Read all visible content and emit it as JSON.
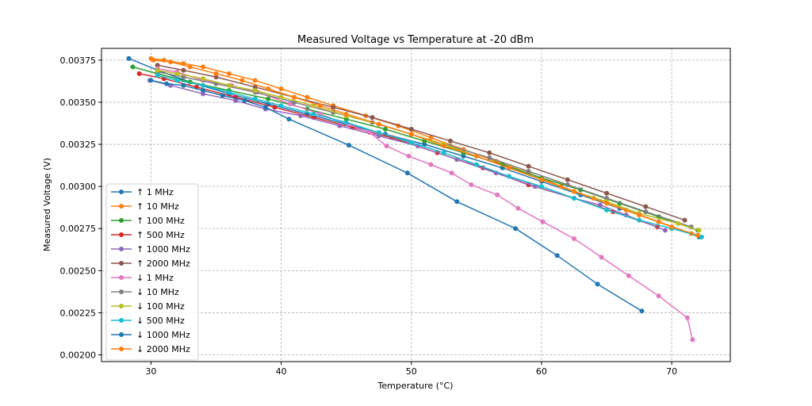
{
  "chart_data": {
    "type": "line",
    "title": "Measured Voltage vs Temperature at -20 dBm",
    "xlabel": "Temperature (°C)",
    "ylabel": "Measured Voltage (V)",
    "xlim": [
      26.2,
      74.5
    ],
    "ylim": [
      0.00196,
      0.00382
    ],
    "xticks": [
      30,
      40,
      50,
      60,
      70
    ],
    "xtick_labels": [
      "30",
      "40",
      "50",
      "60",
      "70"
    ],
    "yticks": [
      0.002,
      0.00225,
      0.0025,
      0.00275,
      0.003,
      0.00325,
      0.0035,
      0.00375
    ],
    "ytick_labels": [
      "0.00200",
      "0.00225",
      "0.00250",
      "0.00275",
      "0.00300",
      "0.00325",
      "0.00350",
      "0.00375"
    ],
    "grid": true,
    "legend_position": "lower-left",
    "series": [
      {
        "name": "↑ 1 MHz",
        "color": "#1f77b4",
        "x": [
          28.3,
          30.5,
          33,
          36,
          39,
          42,
          45,
          48,
          51,
          54,
          57,
          60,
          63,
          66,
          69,
          72.1
        ],
        "y": [
          0.00376,
          0.00369,
          0.00362,
          0.00355,
          0.00349,
          0.00343,
          0.00337,
          0.00331,
          0.00325,
          0.00318,
          0.00311,
          0.00303,
          0.00295,
          0.00287,
          0.00279,
          0.0027
        ]
      },
      {
        "name": "↑ 10 MHz",
        "color": "#ff7f0e",
        "x": [
          30,
          31,
          32.5,
          34,
          36,
          38,
          40,
          42,
          44,
          46.5,
          49,
          51.5,
          54,
          56.5,
          59,
          61.5,
          64,
          66.5,
          69,
          71.5
        ],
        "y": [
          0.00376,
          0.00375,
          0.00373,
          0.00371,
          0.00367,
          0.00363,
          0.00358,
          0.00353,
          0.00348,
          0.00342,
          0.00336,
          0.00329,
          0.00322,
          0.00315,
          0.00308,
          0.003,
          0.00293,
          0.00286,
          0.00279,
          0.00272
        ]
      },
      {
        "name": "↑ 100 MHz",
        "color": "#2ca02c",
        "x": [
          28.6,
          30.5,
          33,
          36,
          39,
          42,
          45,
          48,
          51,
          54,
          57,
          60,
          63,
          66,
          69,
          72
        ],
        "y": [
          0.00371,
          0.00367,
          0.00362,
          0.00357,
          0.00352,
          0.00346,
          0.0034,
          0.00334,
          0.00327,
          0.0032,
          0.00313,
          0.00305,
          0.00298,
          0.0029,
          0.00282,
          0.00274
        ]
      },
      {
        "name": "↑ 500 MHz",
        "color": "#d62728",
        "x": [
          29.1,
          31,
          33.5,
          36.5,
          39.5,
          42.5,
          45.5,
          48.5,
          52,
          55.5,
          59,
          62.5,
          65.5,
          68.9
        ],
        "y": [
          0.00367,
          0.00364,
          0.00359,
          0.00353,
          0.00347,
          0.00341,
          0.00335,
          0.00329,
          0.0032,
          0.00311,
          0.00301,
          0.00293,
          0.00285,
          0.00276
        ]
      },
      {
        "name": "↑ 1000 MHz",
        "color": "#9467bd",
        "x": [
          29.9,
          31.5,
          34,
          36.5,
          38.8,
          41.5,
          44.5,
          47.5,
          50.5,
          53.5,
          56.5,
          59.5,
          62.5,
          64.5,
          66.5,
          69.5
        ],
        "y": [
          0.00363,
          0.0036,
          0.00355,
          0.00351,
          0.00346,
          0.00342,
          0.00336,
          0.0033,
          0.00324,
          0.00316,
          0.00308,
          0.003,
          0.00293,
          0.00289,
          0.00283,
          0.00274
        ]
      },
      {
        "name": "↑ 2000 MHz",
        "color": "#8c564b",
        "x": [
          30.5,
          32.5,
          35,
          38,
          41,
          44,
          47,
          50,
          53,
          56,
          59,
          62,
          65,
          68,
          71
        ],
        "y": [
          0.00372,
          0.00369,
          0.00365,
          0.00359,
          0.00353,
          0.00347,
          0.00341,
          0.00334,
          0.00327,
          0.0032,
          0.00312,
          0.00304,
          0.00296,
          0.00288,
          0.0028
        ]
      },
      {
        "name": "↓ 1 MHz",
        "color": "#e377c2",
        "x": [
          30.5,
          32,
          34,
          36.2,
          38.2,
          40.7,
          43,
          45.1,
          46.8,
          48.1,
          49.8,
          51.5,
          53.1,
          54.6,
          56.6,
          58.2,
          60.1,
          62.5,
          64.6,
          66.7,
          69,
          71.2,
          71.6
        ],
        "y": [
          0.0037,
          0.00368,
          0.00363,
          0.0036,
          0.00356,
          0.00349,
          0.00343,
          0.00337,
          0.00332,
          0.00324,
          0.00318,
          0.00313,
          0.00308,
          0.00301,
          0.00295,
          0.00287,
          0.00279,
          0.00269,
          0.00258,
          0.00247,
          0.00235,
          0.00222,
          0.00209
        ]
      },
      {
        "name": "↓ 10 MHz",
        "color": "#7f7f7f",
        "x": [
          30.5,
          32.5,
          35,
          38,
          41,
          44,
          47,
          50,
          53,
          56,
          59,
          62,
          65,
          68,
          71.5
        ],
        "y": [
          0.00368,
          0.00365,
          0.00361,
          0.00356,
          0.0035,
          0.00344,
          0.00338,
          0.00331,
          0.00324,
          0.00317,
          0.00309,
          0.00301,
          0.00293,
          0.00285,
          0.00276
        ]
      },
      {
        "name": "↓ 100 MHz",
        "color": "#bcbd22",
        "x": [
          30.5,
          32,
          34,
          36,
          38,
          40,
          42.5,
          45,
          47.5,
          50,
          52.5,
          55,
          57.5,
          60,
          62.5,
          65,
          67.5,
          70.5,
          72.1
        ],
        "y": [
          0.00369,
          0.00367,
          0.00364,
          0.0036,
          0.00357,
          0.00353,
          0.00348,
          0.00342,
          0.00337,
          0.00331,
          0.00325,
          0.00318,
          0.00311,
          0.00304,
          0.00297,
          0.00291,
          0.00284,
          0.00278,
          0.00274
        ]
      },
      {
        "name": "↓ 500 MHz",
        "color": "#17becf",
        "x": [
          30.5,
          32,
          34,
          36,
          38,
          40,
          42.5,
          45,
          47.5,
          50,
          52.5,
          55,
          57.5,
          60,
          62.5,
          65,
          67.5,
          70,
          72.3
        ],
        "y": [
          0.00366,
          0.00363,
          0.0036,
          0.00356,
          0.00352,
          0.00348,
          0.00343,
          0.00338,
          0.00332,
          0.00326,
          0.0032,
          0.00313,
          0.00306,
          0.003,
          0.00293,
          0.00286,
          0.0028,
          0.00275,
          0.0027
        ]
      },
      {
        "name": "↓ 1000 MHz",
        "color": "#1f77b4",
        "x": [
          30,
          31.2,
          32.5,
          34,
          35.5,
          37.2,
          38.8,
          40.6,
          45.2,
          49.7,
          53.5,
          58.0,
          61.2,
          64.3,
          67.7
        ],
        "y": [
          0.00363,
          0.00361,
          0.0036,
          0.00357,
          0.00354,
          0.00351,
          0.00347,
          0.0034,
          0.003245,
          0.00308,
          0.00291,
          0.00275,
          0.00259,
          0.00242,
          0.00226
        ]
      },
      {
        "name": "↓ 2000 MHz",
        "color": "#ff7f0e",
        "x": [
          30.2,
          31.5,
          33,
          35,
          37,
          39,
          41,
          43,
          45,
          47.5,
          50,
          52.5,
          55,
          57.5,
          60,
          62.5,
          65,
          67.5,
          70,
          72
        ],
        "y": [
          0.00375,
          0.00374,
          0.00371,
          0.00367,
          0.00363,
          0.00358,
          0.00353,
          0.00348,
          0.00343,
          0.00337,
          0.00331,
          0.00324,
          0.00318,
          0.00311,
          0.00304,
          0.00297,
          0.0029,
          0.00283,
          0.00276,
          0.00271
        ]
      }
    ]
  }
}
